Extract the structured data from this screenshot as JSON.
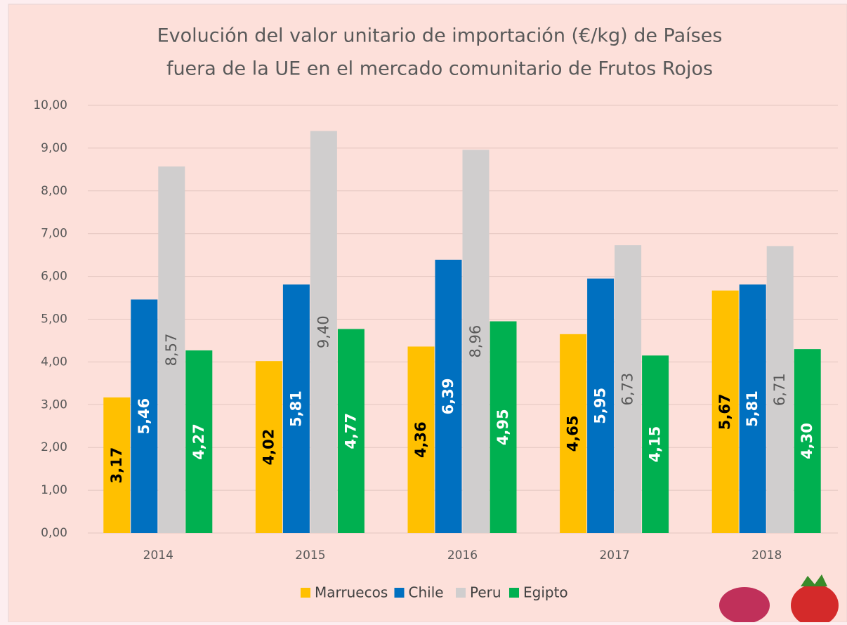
{
  "chart_data": {
    "type": "bar",
    "title": [
      "Evolución del valor unitario de importación (€/kg) de Países",
      "fuera de la UE en el mercado comunitario de Frutos Rojos"
    ],
    "categories": [
      "2014",
      "2015",
      "2016",
      "2017",
      "2018"
    ],
    "series": [
      {
        "name": "Marruecos",
        "color": "#ffc000",
        "label_color": "#000000",
        "values": [
          3.17,
          4.02,
          4.36,
          4.65,
          5.67
        ],
        "value_labels": [
          "3,17",
          "4,02",
          "4,36",
          "4,65",
          "5,67"
        ]
      },
      {
        "name": "Chile",
        "color": "#0070c0",
        "label_color": "#ffffff",
        "values": [
          5.46,
          5.81,
          6.39,
          5.95,
          5.81
        ],
        "value_labels": [
          "5,46",
          "5,81",
          "6,39",
          "5,95",
          "5,81"
        ]
      },
      {
        "name": "Peru",
        "color": "#d0cece",
        "label_color": "#595959",
        "values": [
          8.57,
          9.4,
          8.96,
          6.73,
          6.71
        ],
        "value_labels": [
          "8,57",
          "9,40",
          "8,96",
          "6,73",
          "6,71"
        ]
      },
      {
        "name": "Egipto",
        "color": "#00b050",
        "label_color": "#ffffff",
        "values": [
          4.27,
          4.77,
          4.95,
          4.15,
          4.3
        ],
        "value_labels": [
          "4,27",
          "4,77",
          "4,95",
          "4,15",
          "4,30"
        ]
      }
    ],
    "ylim": [
      0,
      10
    ],
    "yticks": [
      {
        "value": 0,
        "label": "0,00"
      },
      {
        "value": 1,
        "label": "1,00"
      },
      {
        "value": 2,
        "label": "2,00"
      },
      {
        "value": 3,
        "label": "3,00"
      },
      {
        "value": 4,
        "label": "4,00"
      },
      {
        "value": 5,
        "label": "5,00"
      },
      {
        "value": 6,
        "label": "6,00"
      },
      {
        "value": 7,
        "label": "7,00"
      },
      {
        "value": 8,
        "label": "8,00"
      },
      {
        "value": 9,
        "label": "9,00"
      },
      {
        "value": 10,
        "label": "10,00"
      }
    ],
    "grid": true,
    "legend": "bottom"
  }
}
